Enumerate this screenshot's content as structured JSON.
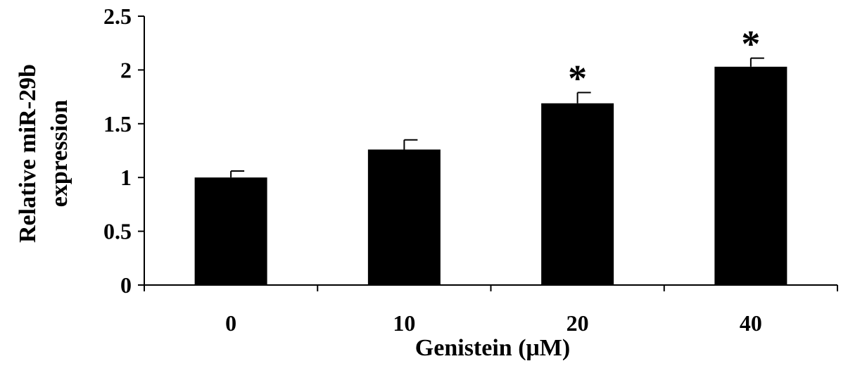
{
  "chart_data": {
    "type": "bar",
    "categories": [
      "0",
      "10",
      "20",
      "40"
    ],
    "values": [
      1.0,
      1.26,
      1.69,
      2.03
    ],
    "error_bars": [
      0.06,
      0.09,
      0.1,
      0.08
    ],
    "significance_markers": [
      "",
      "",
      "*",
      "*"
    ],
    "xlabel": "Genistein (μM)",
    "ylabel_lines": [
      "Relative miR-29b",
      "expression"
    ],
    "ylim": [
      0,
      2.5
    ],
    "y_ticks": [
      "0",
      "0.5",
      "1",
      "1.5",
      "2",
      "2.5"
    ],
    "grid": false,
    "legend": "none",
    "bar_color": "#000000"
  }
}
